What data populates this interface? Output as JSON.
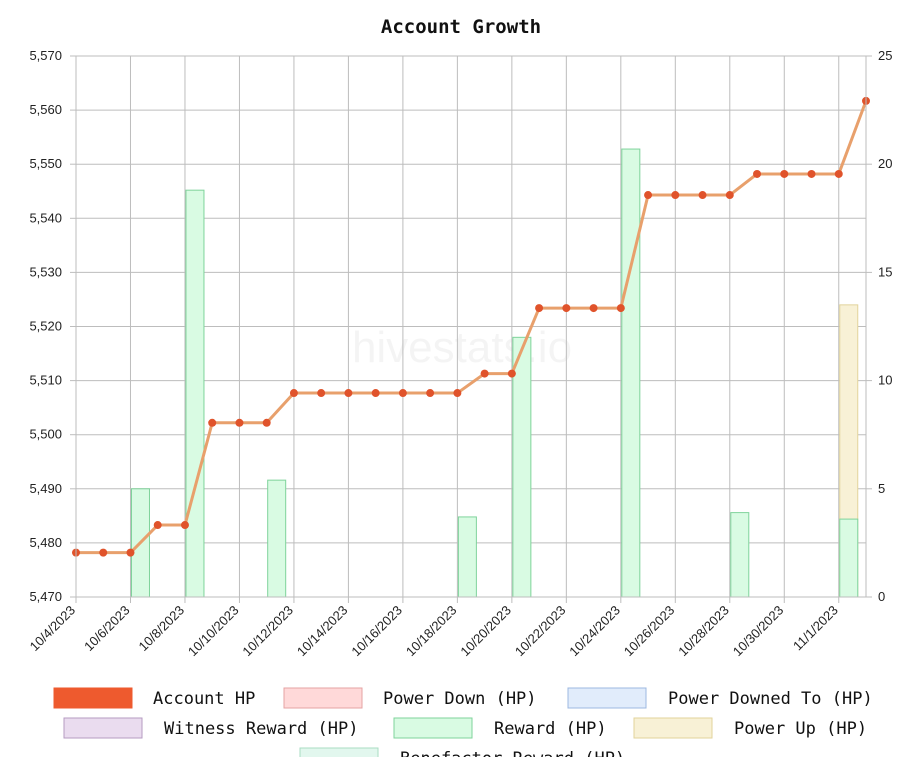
{
  "chart_data": {
    "type": "line",
    "title": "Account Growth",
    "watermark": "hivestats.io",
    "x_labels": [
      "10/4/2023",
      "10/6/2023",
      "10/8/2023",
      "10/10/2023",
      "10/12/2023",
      "10/14/2023",
      "10/16/2023",
      "10/18/2023",
      "10/20/2023",
      "10/22/2023",
      "10/24/2023",
      "10/26/2023",
      "10/28/2023",
      "10/30/2023",
      "11/1/2023"
    ],
    "left_axis": {
      "min": 5470,
      "max": 5570,
      "ticks": [
        "5,470",
        "5,480",
        "5,490",
        "5,500",
        "5,510",
        "5,520",
        "5,530",
        "5,540",
        "5,550",
        "5,560",
        "5,570"
      ]
    },
    "right_axis": {
      "min": 0,
      "max": 25,
      "ticks": [
        "0",
        "5",
        "10",
        "15",
        "20",
        "25"
      ]
    },
    "dates": [
      "10/4",
      "10/5",
      "10/6",
      "10/7",
      "10/8",
      "10/9",
      "10/10",
      "10/11",
      "10/12",
      "10/13",
      "10/14",
      "10/15",
      "10/16",
      "10/17",
      "10/18",
      "10/19",
      "10/20",
      "10/21",
      "10/22",
      "10/23",
      "10/24",
      "10/25",
      "10/26",
      "10/27",
      "10/28",
      "10/29",
      "10/30",
      "10/31",
      "11/1",
      "11/2"
    ],
    "series": [
      {
        "name": "Account HP",
        "axis": "left",
        "kind": "line",
        "color": "#e8a06c",
        "point_color": "#e0532b",
        "values": [
          5478.2,
          5478.2,
          5478.2,
          5483.3,
          5483.3,
          5502.2,
          5502.2,
          5502.2,
          5507.7,
          5507.7,
          5507.7,
          5507.7,
          5507.7,
          5507.7,
          5507.7,
          5511.3,
          5511.3,
          5523.4,
          5523.4,
          5523.4,
          5523.4,
          5544.3,
          5544.3,
          5544.3,
          5544.3,
          5548.2,
          5548.2,
          5548.2,
          5548.2,
          5561.7
        ]
      },
      {
        "name": "Reward (HP)",
        "axis": "right",
        "kind": "bar",
        "color": "#d9fbe3",
        "border": "#7fd39b",
        "values": [
          null,
          null,
          5.0,
          null,
          18.8,
          null,
          null,
          5.4,
          null,
          null,
          null,
          null,
          null,
          null,
          3.7,
          null,
          12.0,
          null,
          null,
          null,
          20.7,
          null,
          null,
          null,
          3.9,
          null,
          null,
          null,
          3.6,
          null
        ]
      },
      {
        "name": "Power Up (HP)",
        "axis": "right",
        "kind": "bar",
        "color": "#f8f1d6",
        "border": "#e2d39b",
        "values": [
          null,
          null,
          null,
          null,
          null,
          null,
          null,
          null,
          null,
          null,
          null,
          null,
          null,
          null,
          null,
          null,
          null,
          null,
          null,
          null,
          null,
          null,
          null,
          null,
          null,
          null,
          null,
          null,
          13.5,
          null
        ]
      }
    ],
    "legend": [
      {
        "label": "Account HP",
        "fill": "#ee5a2e",
        "border": "#ee5a2e"
      },
      {
        "label": "Power Down (HP)",
        "fill": "#ffd9d9",
        "border": "#e6a3a3"
      },
      {
        "label": "Power Downed To (HP)",
        "fill": "#e1ecfb",
        "border": "#9db8e0"
      },
      {
        "label": "Witness Reward (HP)",
        "fill": "#eadcef",
        "border": "#b69bc2"
      },
      {
        "label": "Reward (HP)",
        "fill": "#d9fbe3",
        "border": "#7fd39b"
      },
      {
        "label": "Power Up (HP)",
        "fill": "#f8f1d6",
        "border": "#e2d39b"
      },
      {
        "label": "Benefactor Reward (HP)",
        "fill": "#e2f7ee",
        "border": "#a9dcc3"
      }
    ],
    "grid": true,
    "legend_position": "bottom"
  }
}
